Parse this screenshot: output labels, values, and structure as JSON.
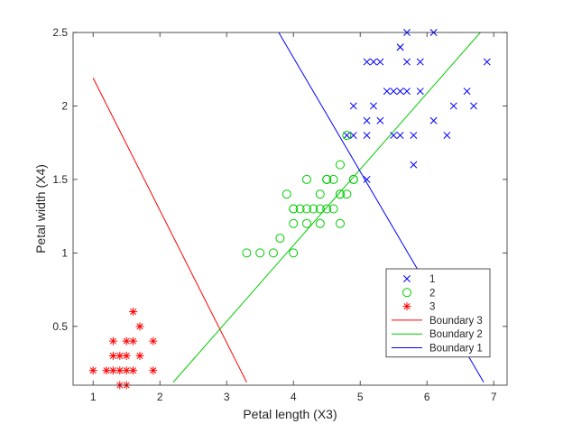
{
  "chart_data": {
    "type": "scatter",
    "title": "",
    "xlabel": "Petal length (X3)",
    "ylabel": "Petal width (X4)",
    "xlim": [
      0.7,
      7.2
    ],
    "ylim": [
      0.1,
      2.5
    ],
    "xticks": [
      1,
      2,
      3,
      4,
      5,
      6,
      7
    ],
    "yticks": [
      0.5,
      1,
      1.5,
      2,
      2.5
    ],
    "xtick_labels": [
      "1",
      "2",
      "3",
      "4",
      "5",
      "6",
      "7"
    ],
    "ytick_labels": [
      "0.5",
      "1",
      "1.5",
      "2",
      "2.5"
    ],
    "grid": false,
    "legend_position": "bottom-right",
    "series": [
      {
        "name": "1",
        "kind": "scatter",
        "marker": "x",
        "color": "#0000ff",
        "points": [
          [
            5.7,
            2.5
          ],
          [
            6.1,
            2.5
          ],
          [
            5.6,
            2.4
          ],
          [
            5.6,
            2.4
          ],
          [
            5.1,
            2.3
          ],
          [
            5.2,
            2.3
          ],
          [
            5.3,
            2.3
          ],
          [
            5.7,
            2.3
          ],
          [
            5.9,
            2.3
          ],
          [
            6.9,
            2.3
          ],
          [
            5.4,
            2.1
          ],
          [
            5.5,
            2.1
          ],
          [
            5.6,
            2.1
          ],
          [
            5.7,
            2.1
          ],
          [
            5.9,
            2.1
          ],
          [
            6.6,
            2.1
          ],
          [
            4.9,
            2.0
          ],
          [
            5.2,
            2.0
          ],
          [
            6.4,
            2.0
          ],
          [
            6.7,
            2.0
          ],
          [
            5.1,
            1.9
          ],
          [
            5.3,
            1.9
          ],
          [
            6.1,
            1.9
          ],
          [
            4.8,
            1.8
          ],
          [
            4.9,
            1.8
          ],
          [
            5.1,
            1.8
          ],
          [
            5.5,
            1.8
          ],
          [
            5.6,
            1.8
          ],
          [
            5.8,
            1.8
          ],
          [
            6.3,
            1.8
          ],
          [
            5.8,
            1.6
          ],
          [
            5.1,
            1.5
          ]
        ]
      },
      {
        "name": "2",
        "kind": "scatter",
        "marker": "o",
        "color": "#00cc00",
        "points": [
          [
            4.8,
            1.8
          ],
          [
            4.7,
            1.6
          ],
          [
            4.5,
            1.5
          ],
          [
            4.6,
            1.5
          ],
          [
            4.9,
            1.5
          ],
          [
            4.9,
            1.5
          ],
          [
            4.5,
            1.5
          ],
          [
            4.2,
            1.5
          ],
          [
            4.5,
            1.5
          ],
          [
            3.9,
            1.4
          ],
          [
            4.4,
            1.4
          ],
          [
            4.7,
            1.4
          ],
          [
            4.8,
            1.4
          ],
          [
            4.7,
            1.4
          ],
          [
            4.0,
            1.3
          ],
          [
            4.0,
            1.3
          ],
          [
            4.1,
            1.3
          ],
          [
            4.2,
            1.3
          ],
          [
            4.3,
            1.3
          ],
          [
            4.4,
            1.3
          ],
          [
            4.5,
            1.3
          ],
          [
            4.6,
            1.3
          ],
          [
            4.0,
            1.2
          ],
          [
            4.2,
            1.2
          ],
          [
            4.4,
            1.2
          ],
          [
            4.7,
            1.2
          ],
          [
            3.8,
            1.1
          ],
          [
            3.3,
            1.0
          ],
          [
            3.5,
            1.0
          ],
          [
            3.7,
            1.0
          ],
          [
            4.0,
            1.0
          ]
        ]
      },
      {
        "name": "3",
        "kind": "scatter",
        "marker": "*",
        "color": "#ff0000",
        "points": [
          [
            1.6,
            0.6
          ],
          [
            1.7,
            0.5
          ],
          [
            1.3,
            0.4
          ],
          [
            1.5,
            0.4
          ],
          [
            1.6,
            0.4
          ],
          [
            1.9,
            0.4
          ],
          [
            1.3,
            0.3
          ],
          [
            1.4,
            0.3
          ],
          [
            1.5,
            0.3
          ],
          [
            1.7,
            0.3
          ],
          [
            1.0,
            0.2
          ],
          [
            1.2,
            0.2
          ],
          [
            1.3,
            0.2
          ],
          [
            1.4,
            0.2
          ],
          [
            1.5,
            0.2
          ],
          [
            1.6,
            0.2
          ],
          [
            1.9,
            0.2
          ],
          [
            1.4,
            0.1
          ],
          [
            1.5,
            0.1
          ]
        ]
      },
      {
        "name": "Boundary 3",
        "kind": "line",
        "color": "#ff0000",
        "points": [
          [
            1.0,
            2.19
          ],
          [
            3.3,
            0.12
          ]
        ]
      },
      {
        "name": "Boundary 2",
        "kind": "line",
        "color": "#00cc00",
        "points": [
          [
            2.2,
            0.12
          ],
          [
            6.8,
            2.5
          ]
        ]
      },
      {
        "name": "Boundary 1",
        "kind": "line",
        "color": "#0000ff",
        "points": [
          [
            3.78,
            2.5
          ],
          [
            6.85,
            0.12
          ]
        ]
      }
    ]
  }
}
